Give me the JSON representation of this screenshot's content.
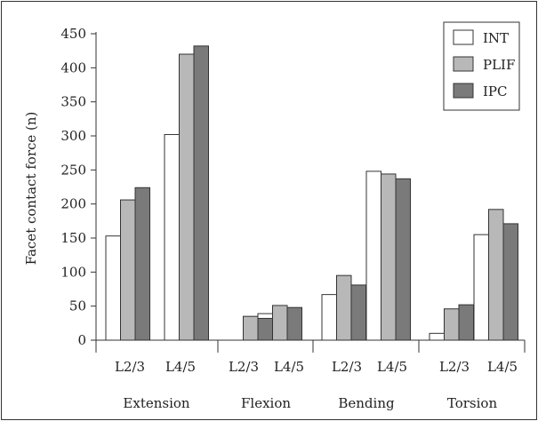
{
  "chart_data": {
    "type": "bar",
    "ylabel": "Facet contact force (n)",
    "ylim": [
      0,
      450
    ],
    "yticks": [
      0,
      50,
      100,
      150,
      200,
      250,
      300,
      350,
      400,
      450
    ],
    "grid": false,
    "legend_position": "top-right",
    "groups": [
      {
        "label": "Extension",
        "levels": [
          "L2/3",
          "L4/5"
        ]
      },
      {
        "label": "Flexion",
        "levels": [
          "L2/3",
          "L4/5"
        ]
      },
      {
        "label": "Bending",
        "levels": [
          "L2/3",
          "L4/5"
        ]
      },
      {
        "label": "Torsion",
        "levels": [
          "L2/3",
          "L4/5"
        ]
      }
    ],
    "series": [
      {
        "name": "INT",
        "color": "#ffffff",
        "values": [
          153,
          302,
          0,
          39,
          67,
          248,
          10,
          155
        ]
      },
      {
        "name": "PLIF",
        "color": "#b8b8b8",
        "values": [
          206,
          420,
          35,
          51,
          95,
          244,
          46,
          192
        ]
      },
      {
        "name": "IPC",
        "color": "#7a7a7a",
        "values": [
          224,
          432,
          32,
          48,
          81,
          237,
          52,
          171
        ]
      }
    ]
  }
}
